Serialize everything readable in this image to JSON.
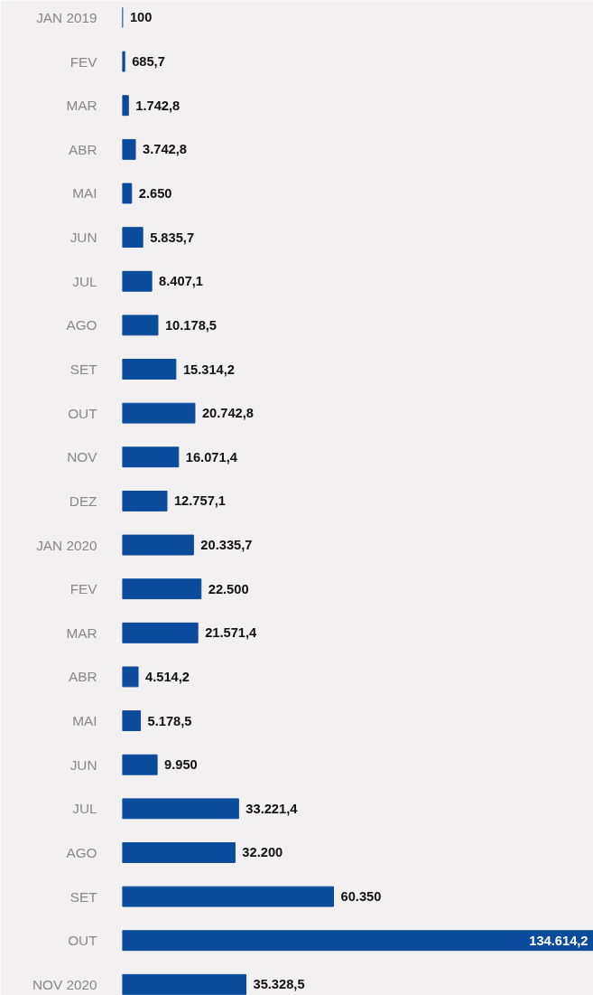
{
  "chart_data": {
    "type": "bar",
    "orientation": "horizontal",
    "categories": [
      "JAN 2019",
      "FEV",
      "MAR",
      "ABR",
      "MAI",
      "JUN",
      "JUL",
      "AGO",
      "SET",
      "OUT",
      "NOV",
      "DEZ",
      "JAN 2020",
      "FEV",
      "MAR",
      "ABR",
      "MAI",
      "JUN",
      "JUL",
      "AGO",
      "SET",
      "OUT",
      "NOV 2020"
    ],
    "values": [
      100,
      685.7,
      1742.8,
      3742.8,
      2650,
      5835.7,
      8407.1,
      10178.5,
      15314.2,
      20742.8,
      16071.4,
      12757.1,
      20335.7,
      22500,
      21571.4,
      4514.2,
      5178.5,
      9950,
      33221.4,
      32200,
      60350,
      134614.2,
      35328.5
    ],
    "value_labels": [
      "100",
      "685,7",
      "1.742,8",
      "3.742,8",
      "2.650",
      "5.835,7",
      "8.407,1",
      "10.178,5",
      "15.314,2",
      "20.742,8",
      "16.071,4",
      "12.757,1",
      "20.335,7",
      "22.500",
      "21.571,4",
      "4.514,2",
      "5.178,5",
      "9.950",
      "33.221,4",
      "32.200",
      "60.350",
      "134.614,2",
      "35.328,5"
    ],
    "color": "#0b4b9c",
    "tick_labels": "y",
    "grid": false
  }
}
